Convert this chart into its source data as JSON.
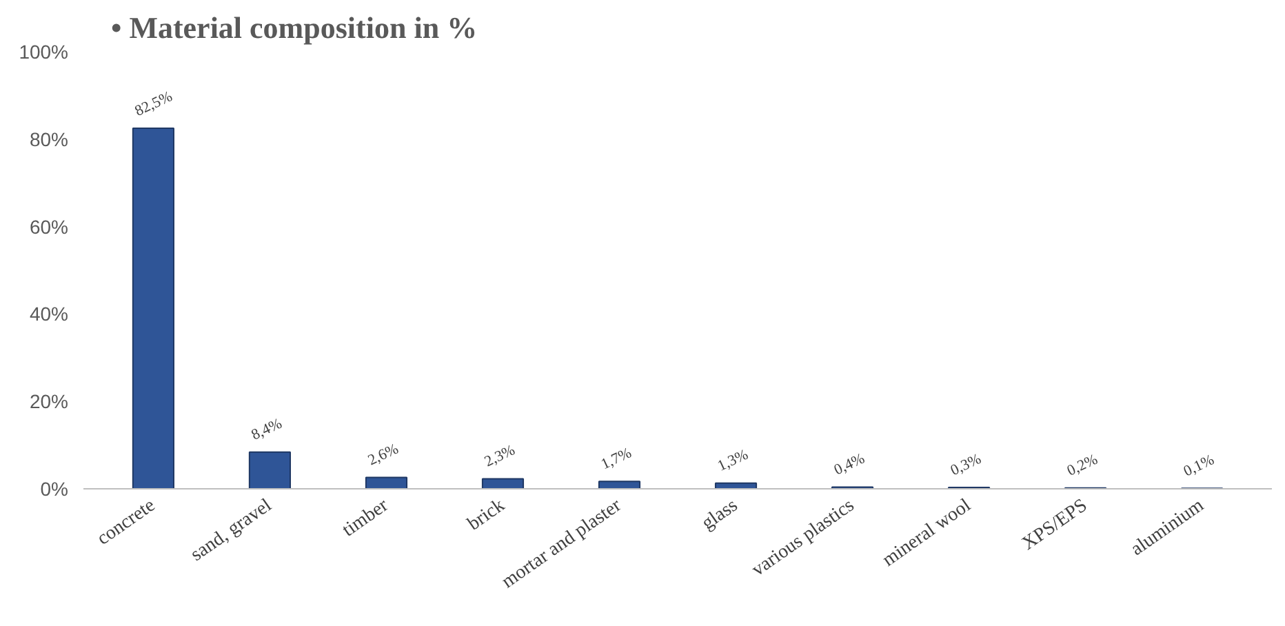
{
  "chart_data": {
    "type": "bar",
    "title": "• Material composition in %",
    "categories": [
      "concrete",
      "sand, gravel",
      "timber",
      "brick",
      "mortar and plaster",
      "glass",
      "various plastics",
      "mineral wool",
      "XPS/EPS",
      "aluminium"
    ],
    "values": [
      82.5,
      8.4,
      2.6,
      2.3,
      1.7,
      1.3,
      0.4,
      0.3,
      0.2,
      0.1
    ],
    "value_labels": [
      "82,5%",
      "8,4%",
      "2,6%",
      "2,3%",
      "1,7%",
      "1,3%",
      "0,4%",
      "0,3%",
      "0,2%",
      "0,1%"
    ],
    "color": "#2f5597",
    "ylim": [
      0,
      100
    ],
    "yticks": [
      {
        "value": 0,
        "label": "0%"
      },
      {
        "value": 20,
        "label": "20%"
      },
      {
        "value": 40,
        "label": "40%"
      },
      {
        "value": 60,
        "label": "60%"
      },
      {
        "value": 80,
        "label": "80%"
      },
      {
        "value": 100,
        "label": "100%"
      }
    ],
    "grid": false
  }
}
